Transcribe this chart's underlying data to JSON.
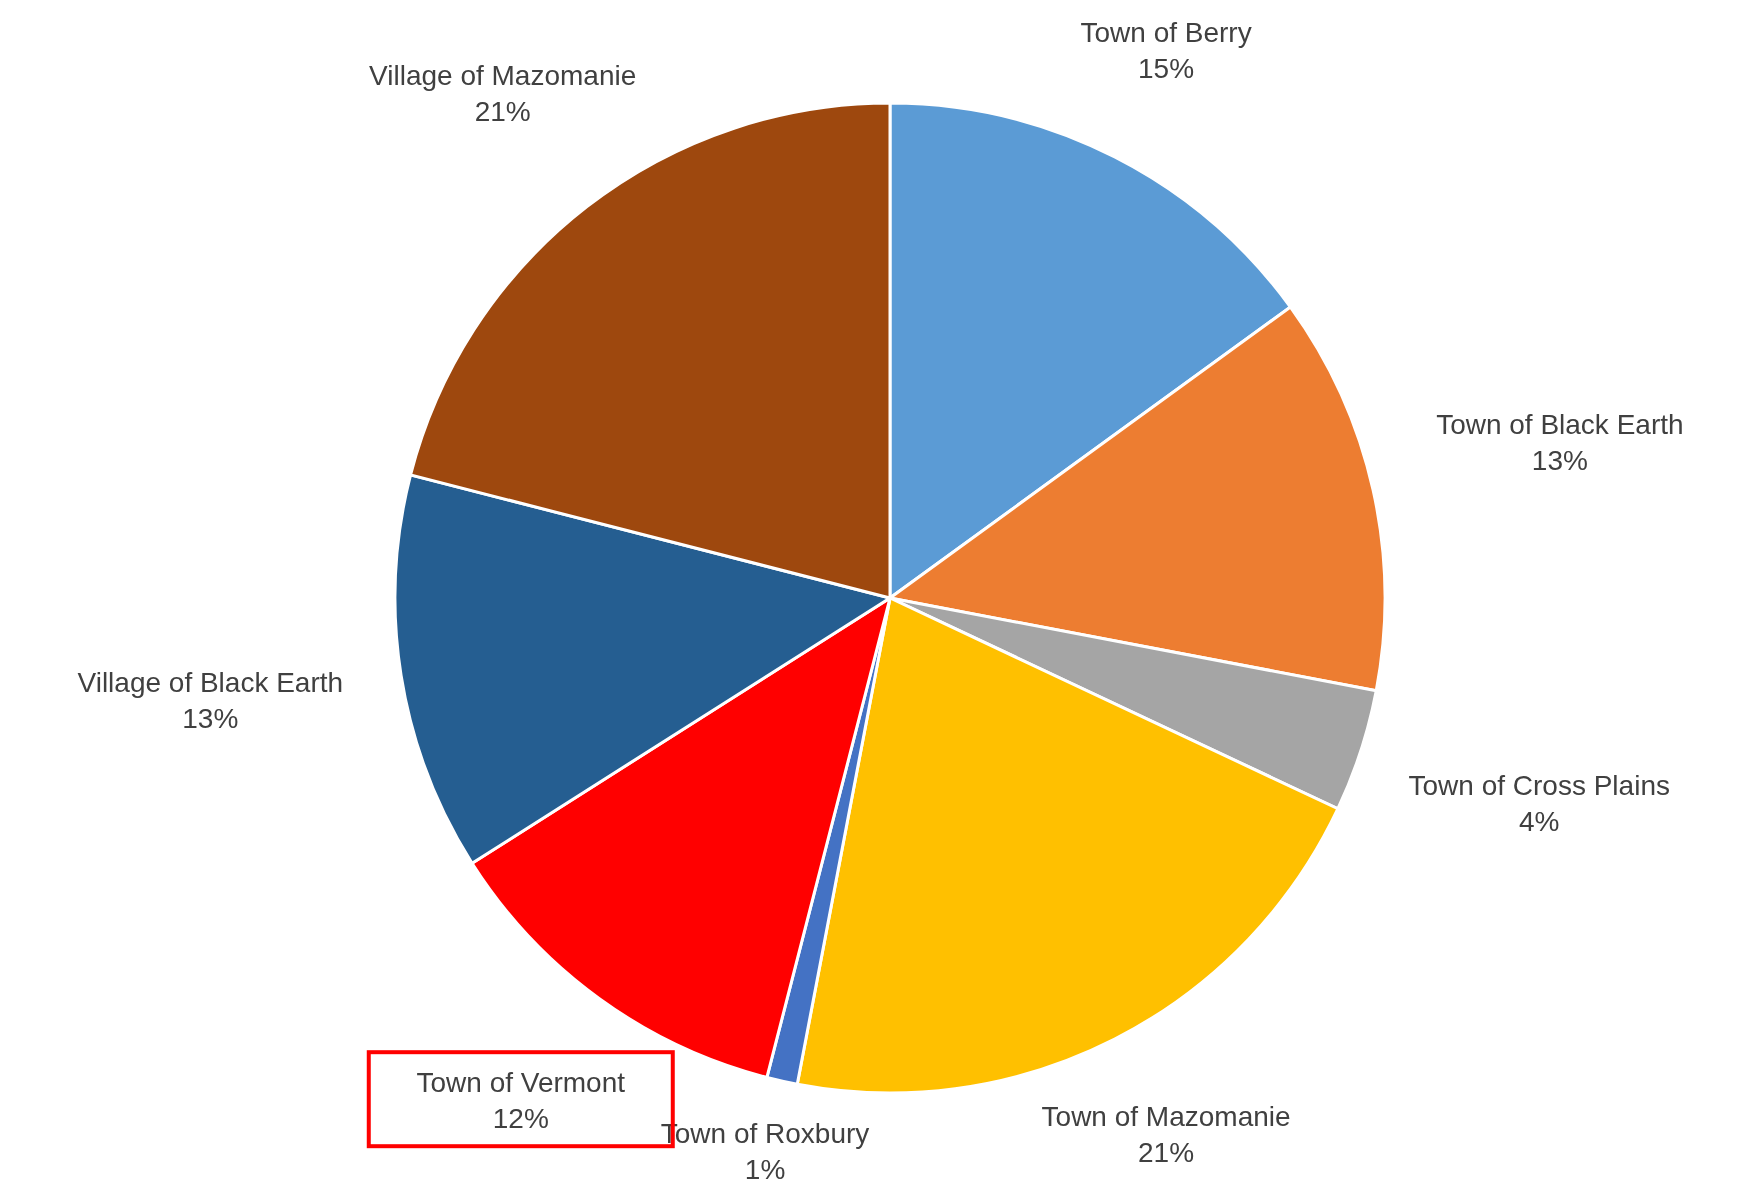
{
  "chart_data": {
    "type": "pie",
    "categories": [
      "Town of Berry",
      "Town of Black Earth",
      "Town of Cross Plains",
      "Town of Mazomanie",
      "Town of Roxbury",
      "Town of Vermont",
      "Village of Black Earth",
      "Village of Mazomanie"
    ],
    "values": [
      15,
      13,
      4,
      21,
      1,
      12,
      13,
      21
    ],
    "colors": [
      "#5b9bd5",
      "#ed7d31",
      "#a5a5a5",
      "#ffc000",
      "#4472c4",
      "#ff0000",
      "#255e91",
      "#9e480e"
    ],
    "value_labels": [
      "15%",
      "13%",
      "4%",
      "21%",
      "1%",
      "12%",
      "13%",
      "21%"
    ]
  }
}
